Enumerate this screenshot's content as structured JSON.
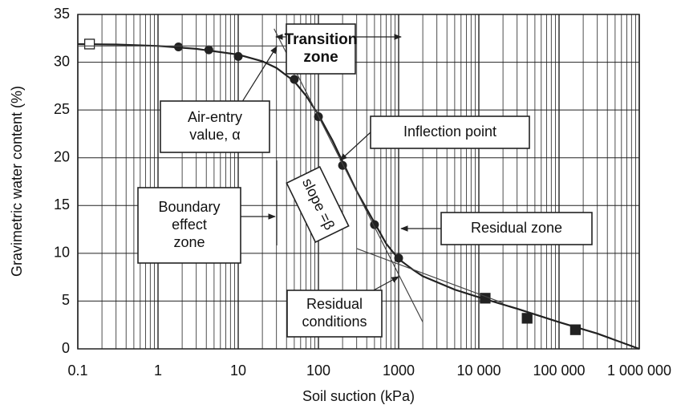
{
  "chart_data": {
    "type": "line",
    "xlabel": "Soil suction (kPa)",
    "ylabel": "Gravimetric water content (%)",
    "xscale": "log",
    "xlim": [
      0.1,
      1000000
    ],
    "ylim": [
      0,
      35
    ],
    "xticks": [
      0.1,
      1,
      10,
      100,
      1000,
      {
        "value": 10000,
        "label": "10 000"
      },
      {
        "value": 100000,
        "label": "100 000"
      },
      {
        "value": 1000000,
        "label": "1 000 000"
      }
    ],
    "yticks": [
      0,
      5,
      10,
      15,
      20,
      25,
      30,
      35
    ],
    "grid": true,
    "minor_grid": true,
    "series": [
      {
        "marker": "none",
        "color": "#222",
        "x": [
          0.1,
          0.3,
          1,
          3,
          10,
          20,
          30,
          50,
          70,
          100,
          150,
          200,
          300,
          500,
          700,
          1000,
          1500,
          2000,
          5000,
          10000,
          30000,
          100000,
          300000,
          1000000
        ],
        "values": [
          31.9,
          31.85,
          31.7,
          31.4,
          30.8,
          30.1,
          29.4,
          28.0,
          26.5,
          24.5,
          21.8,
          19.6,
          16.5,
          13.2,
          11.0,
          9.4,
          8.3,
          7.6,
          6.2,
          5.4,
          4.2,
          2.8,
          1.6,
          0
        ]
      },
      {
        "marker": "circle",
        "color": "#222",
        "x": [
          1.8,
          4.3,
          10,
          50,
          100,
          200,
          500,
          1000
        ],
        "values": [
          31.6,
          31.3,
          30.6,
          28.2,
          24.3,
          19.2,
          13,
          9.5
        ]
      },
      {
        "marker": "square",
        "color": "#222",
        "x": [
          12000,
          40000,
          160000
        ],
        "values": [
          5.3,
          3.2,
          2
        ]
      },
      {
        "marker": "open-square",
        "color": "#222",
        "x": [
          0.14
        ],
        "values": [
          31.9
        ]
      },
      {
        "marker": "thin",
        "color": "#444",
        "x": [
          0.1,
          40
        ],
        "values": [
          31.7,
          31.7
        ]
      },
      {
        "marker": "thin",
        "color": "#444",
        "x": [
          28,
          2000
        ],
        "values": [
          33.5,
          2.8
        ]
      },
      {
        "marker": "thin",
        "color": "#444",
        "x": [
          300,
          20000
        ],
        "values": [
          10.5,
          4.8
        ]
      }
    ],
    "annotations": [
      {
        "lines": [
          "Transition",
          "zone"
        ],
        "bold": true
      },
      {
        "lines": [
          "Air-entry",
          "value, α"
        ]
      },
      {
        "lines": [
          "Inflection point"
        ]
      },
      {
        "lines": [
          "slope =β"
        ]
      },
      {
        "lines": [
          "Boundary",
          "effect",
          "zone"
        ]
      },
      {
        "lines": [
          "Residual zone"
        ]
      },
      {
        "lines": [
          "Residual",
          "conditions"
        ]
      }
    ]
  }
}
